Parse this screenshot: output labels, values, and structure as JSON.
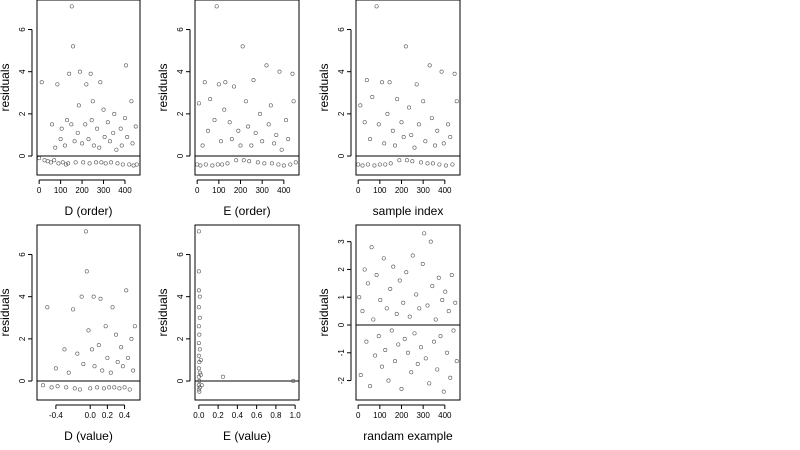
{
  "chart_data": [
    {
      "type": "scatter",
      "xlabel": "D (order)",
      "ylabel": "residuals",
      "xlim": [
        -10,
        470
      ],
      "ylim": [
        -0.9,
        7.4
      ],
      "xticks": [
        0,
        100,
        200,
        300,
        400
      ],
      "xtick_labels": [
        "0",
        "100",
        "200",
        "300",
        "400"
      ],
      "yticks": [
        0,
        2,
        4,
        6
      ],
      "ytick_labels": [
        "0",
        "2",
        "4",
        "6"
      ],
      "hline": 0,
      "points": [
        [
          0,
          -0.1
        ],
        [
          12,
          3.5
        ],
        [
          25,
          -0.2
        ],
        [
          40,
          -0.25
        ],
        [
          55,
          -0.3
        ],
        [
          60,
          1.5
        ],
        [
          70,
          -0.2
        ],
        [
          75,
          0.4
        ],
        [
          85,
          3.4
        ],
        [
          90,
          -0.35
        ],
        [
          100,
          0.8
        ],
        [
          105,
          1.3
        ],
        [
          110,
          -0.3
        ],
        [
          120,
          0.5
        ],
        [
          125,
          -0.4
        ],
        [
          130,
          1.7
        ],
        [
          135,
          -0.35
        ],
        [
          140,
          3.9
        ],
        [
          150,
          1.5
        ],
        [
          152,
          7.1
        ],
        [
          158,
          5.2
        ],
        [
          165,
          0.7
        ],
        [
          170,
          -0.3
        ],
        [
          180,
          1.1
        ],
        [
          185,
          2.4
        ],
        [
          190,
          4.0
        ],
        [
          200,
          0.6
        ],
        [
          205,
          -0.3
        ],
        [
          215,
          1.5
        ],
        [
          220,
          3.4
        ],
        [
          230,
          0.8
        ],
        [
          235,
          -0.35
        ],
        [
          240,
          3.9
        ],
        [
          245,
          1.7
        ],
        [
          250,
          2.6
        ],
        [
          255,
          0.5
        ],
        [
          265,
          -0.3
        ],
        [
          270,
          1.3
        ],
        [
          280,
          0.4
        ],
        [
          285,
          3.5
        ],
        [
          290,
          -0.3
        ],
        [
          300,
          2.2
        ],
        [
          305,
          0.9
        ],
        [
          310,
          -0.35
        ],
        [
          320,
          1.6
        ],
        [
          330,
          0.7
        ],
        [
          335,
          -0.3
        ],
        [
          345,
          1.1
        ],
        [
          350,
          2.0
        ],
        [
          360,
          0.3
        ],
        [
          365,
          -0.35
        ],
        [
          380,
          1.3
        ],
        [
          385,
          0.5
        ],
        [
          390,
          -0.4
        ],
        [
          400,
          1.8
        ],
        [
          405,
          4.3
        ],
        [
          410,
          0.9
        ],
        [
          420,
          -0.4
        ],
        [
          430,
          2.6
        ],
        [
          435,
          0.6
        ],
        [
          440,
          -0.45
        ],
        [
          450,
          1.4
        ],
        [
          455,
          -0.4
        ]
      ]
    },
    {
      "type": "scatter",
      "xlabel": "E (order)",
      "ylabel": "residuals",
      "xlim": [
        -10,
        470
      ],
      "ylim": [
        -0.9,
        7.4
      ],
      "xticks": [
        0,
        100,
        200,
        300,
        400
      ],
      "xtick_labels": [
        "0",
        "100",
        "200",
        "300",
        "400"
      ],
      "yticks": [
        0,
        2,
        4,
        6
      ],
      "ytick_labels": [
        "0",
        "2",
        "4",
        "6"
      ],
      "hline": 0,
      "points": [
        [
          0,
          -0.4
        ],
        [
          8,
          2.5
        ],
        [
          15,
          -0.45
        ],
        [
          25,
          0.5
        ],
        [
          35,
          3.5
        ],
        [
          40,
          -0.4
        ],
        [
          50,
          1.2
        ],
        [
          60,
          2.7
        ],
        [
          70,
          -0.45
        ],
        [
          80,
          1.7
        ],
        [
          90,
          7.1
        ],
        [
          95,
          -0.4
        ],
        [
          100,
          3.4
        ],
        [
          110,
          0.7
        ],
        [
          115,
          -0.4
        ],
        [
          125,
          2.2
        ],
        [
          130,
          3.5
        ],
        [
          140,
          -0.35
        ],
        [
          150,
          1.6
        ],
        [
          160,
          0.8
        ],
        [
          170,
          3.3
        ],
        [
          180,
          -0.2
        ],
        [
          190,
          1.2
        ],
        [
          200,
          0.5
        ],
        [
          210,
          5.2
        ],
        [
          215,
          -0.2
        ],
        [
          225,
          2.6
        ],
        [
          235,
          1.4
        ],
        [
          240,
          -0.25
        ],
        [
          250,
          0.5
        ],
        [
          260,
          3.6
        ],
        [
          270,
          1.1
        ],
        [
          280,
          -0.3
        ],
        [
          290,
          2.0
        ],
        [
          300,
          0.7
        ],
        [
          310,
          -0.35
        ],
        [
          320,
          4.3
        ],
        [
          330,
          1.5
        ],
        [
          340,
          2.4
        ],
        [
          345,
          -0.35
        ],
        [
          355,
          0.6
        ],
        [
          365,
          1.0
        ],
        [
          375,
          -0.4
        ],
        [
          380,
          4.0
        ],
        [
          390,
          0.3
        ],
        [
          400,
          -0.45
        ],
        [
          410,
          1.7
        ],
        [
          420,
          0.8
        ],
        [
          430,
          -0.4
        ],
        [
          440,
          3.9
        ],
        [
          445,
          2.6
        ],
        [
          455,
          -0.3
        ]
      ]
    },
    {
      "type": "scatter",
      "xlabel": "sample index",
      "ylabel": "residuals",
      "xlim": [
        -10,
        470
      ],
      "ylim": [
        -0.9,
        7.4
      ],
      "xticks": [
        0,
        100,
        200,
        300,
        400
      ],
      "xtick_labels": [
        "0",
        "100",
        "200",
        "300",
        "400"
      ],
      "yticks": [
        0,
        2,
        4,
        6
      ],
      "ytick_labels": [
        "0",
        "2",
        "4",
        "6"
      ],
      "hline": 0,
      "points": [
        [
          0,
          -0.4
        ],
        [
          10,
          2.4
        ],
        [
          20,
          -0.45
        ],
        [
          30,
          1.6
        ],
        [
          40,
          3.6
        ],
        [
          45,
          -0.4
        ],
        [
          55,
          0.8
        ],
        [
          65,
          2.8
        ],
        [
          75,
          -0.45
        ],
        [
          85,
          7.1
        ],
        [
          95,
          1.5
        ],
        [
          100,
          -0.4
        ],
        [
          110,
          3.5
        ],
        [
          120,
          0.6
        ],
        [
          125,
          -0.4
        ],
        [
          135,
          2.0
        ],
        [
          145,
          3.5
        ],
        [
          150,
          -0.35
        ],
        [
          160,
          1.2
        ],
        [
          170,
          0.5
        ],
        [
          180,
          2.7
        ],
        [
          190,
          -0.2
        ],
        [
          200,
          1.6
        ],
        [
          210,
          0.9
        ],
        [
          220,
          5.2
        ],
        [
          225,
          -0.2
        ],
        [
          235,
          2.3
        ],
        [
          245,
          1.0
        ],
        [
          250,
          -0.25
        ],
        [
          260,
          0.4
        ],
        [
          270,
          3.4
        ],
        [
          280,
          1.5
        ],
        [
          290,
          -0.3
        ],
        [
          300,
          2.6
        ],
        [
          310,
          0.7
        ],
        [
          320,
          -0.35
        ],
        [
          330,
          4.3
        ],
        [
          340,
          1.8
        ],
        [
          345,
          -0.35
        ],
        [
          355,
          0.5
        ],
        [
          365,
          1.2
        ],
        [
          375,
          -0.4
        ],
        [
          385,
          4.0
        ],
        [
          395,
          0.6
        ],
        [
          405,
          -0.45
        ],
        [
          415,
          1.5
        ],
        [
          425,
          0.9
        ],
        [
          435,
          -0.4
        ],
        [
          445,
          3.9
        ],
        [
          455,
          2.6
        ]
      ]
    },
    {
      "type": "scatter",
      "xlabel": "D (value)",
      "ylabel": "residuals",
      "xlim": [
        -0.62,
        0.58
      ],
      "ylim": [
        -0.9,
        7.4
      ],
      "xticks": [
        -0.4,
        0.0,
        0.2,
        0.4
      ],
      "xtick_labels": [
        "-0.4",
        "0.0",
        "0.2",
        "0.4"
      ],
      "yticks": [
        0,
        2,
        4,
        6
      ],
      "ytick_labels": [
        "0",
        "2",
        "4",
        "6"
      ],
      "hline": 0,
      "points": [
        [
          -0.55,
          -0.2
        ],
        [
          -0.5,
          3.5
        ],
        [
          -0.45,
          -0.3
        ],
        [
          -0.4,
          0.6
        ],
        [
          -0.38,
          -0.25
        ],
        [
          -0.3,
          1.5
        ],
        [
          -0.28,
          -0.3
        ],
        [
          -0.25,
          0.4
        ],
        [
          -0.2,
          3.4
        ],
        [
          -0.18,
          -0.35
        ],
        [
          -0.15,
          1.3
        ],
        [
          -0.12,
          -0.4
        ],
        [
          -0.1,
          4.0
        ],
        [
          -0.08,
          0.8
        ],
        [
          -0.05,
          7.1
        ],
        [
          -0.04,
          5.2
        ],
        [
          -0.02,
          2.4
        ],
        [
          0.0,
          -0.35
        ],
        [
          0.02,
          1.5
        ],
        [
          0.04,
          4.0
        ],
        [
          0.05,
          0.7
        ],
        [
          0.08,
          -0.3
        ],
        [
          0.1,
          1.7
        ],
        [
          0.12,
          3.9
        ],
        [
          0.14,
          0.5
        ],
        [
          0.16,
          -0.35
        ],
        [
          0.18,
          2.6
        ],
        [
          0.2,
          1.1
        ],
        [
          0.22,
          -0.3
        ],
        [
          0.24,
          0.4
        ],
        [
          0.26,
          3.5
        ],
        [
          0.28,
          -0.3
        ],
        [
          0.3,
          2.2
        ],
        [
          0.32,
          0.9
        ],
        [
          0.34,
          -0.35
        ],
        [
          0.36,
          1.6
        ],
        [
          0.38,
          0.7
        ],
        [
          0.4,
          -0.3
        ],
        [
          0.42,
          4.3
        ],
        [
          0.44,
          1.1
        ],
        [
          0.46,
          -0.4
        ],
        [
          0.48,
          2.0
        ],
        [
          0.5,
          0.5
        ],
        [
          0.52,
          2.6
        ]
      ]
    },
    {
      "type": "scatter",
      "xlabel": "E (value)",
      "ylabel": "residuals",
      "xlim": [
        -0.04,
        1.04
      ],
      "ylim": [
        -0.9,
        7.4
      ],
      "xticks": [
        0.0,
        0.2,
        0.4,
        0.6,
        0.8,
        1.0
      ],
      "xtick_labels": [
        "0.0",
        "0.2",
        "0.4",
        "0.6",
        "0.8",
        "1.0"
      ],
      "yticks": [
        0,
        2,
        4,
        6
      ],
      "ytick_labels": [
        "0",
        "2",
        "4",
        "6"
      ],
      "hline": 0,
      "points": [
        [
          0.0,
          7.1
        ],
        [
          0.0,
          5.2
        ],
        [
          0.0,
          4.3
        ],
        [
          0.01,
          4.0
        ],
        [
          0.0,
          3.5
        ],
        [
          0.01,
          3.0
        ],
        [
          0.0,
          2.6
        ],
        [
          0.005,
          2.2
        ],
        [
          0.0,
          1.8
        ],
        [
          0.01,
          1.5
        ],
        [
          0.0,
          1.2
        ],
        [
          0.005,
          0.9
        ],
        [
          0.0,
          0.6
        ],
        [
          0.01,
          0.4
        ],
        [
          0.0,
          0.2
        ],
        [
          0.005,
          0.0
        ],
        [
          0.0,
          -0.2
        ],
        [
          0.01,
          -0.3
        ],
        [
          0.0,
          -0.4
        ],
        [
          0.005,
          -0.5
        ],
        [
          0.02,
          1.0
        ],
        [
          0.02,
          0.3
        ],
        [
          0.03,
          -0.2
        ],
        [
          0.25,
          0.2
        ],
        [
          0.98,
          0.0
        ]
      ]
    },
    {
      "type": "scatter",
      "xlabel": "randam example",
      "ylabel": "residuals",
      "xlim": [
        -10,
        470
      ],
      "ylim": [
        -2.7,
        3.6
      ],
      "xticks": [
        0,
        100,
        200,
        300,
        400
      ],
      "xtick_labels": [
        "0",
        "100",
        "200",
        "300",
        "400"
      ],
      "yticks": [
        -2,
        -1,
        0,
        1,
        2,
        3
      ],
      "ytick_labels": [
        "-2",
        "-1",
        "0",
        "1",
        "2",
        "3"
      ],
      "hline": 0,
      "points": [
        [
          5,
          1.0
        ],
        [
          12,
          -1.8
        ],
        [
          20,
          0.5
        ],
        [
          30,
          2.0
        ],
        [
          38,
          -0.6
        ],
        [
          45,
          1.5
        ],
        [
          55,
          -2.2
        ],
        [
          62,
          2.8
        ],
        [
          70,
          0.2
        ],
        [
          78,
          -1.1
        ],
        [
          85,
          1.8
        ],
        [
          95,
          -0.4
        ],
        [
          102,
          0.9
        ],
        [
          110,
          -1.5
        ],
        [
          118,
          2.4
        ],
        [
          125,
          -0.9
        ],
        [
          132,
          0.6
        ],
        [
          140,
          -2.0
        ],
        [
          148,
          1.3
        ],
        [
          155,
          -0.2
        ],
        [
          162,
          2.1
        ],
        [
          170,
          -1.3
        ],
        [
          178,
          0.4
        ],
        [
          185,
          -0.7
        ],
        [
          192,
          1.6
        ],
        [
          200,
          -2.3
        ],
        [
          208,
          0.8
        ],
        [
          215,
          -0.5
        ],
        [
          222,
          1.9
        ],
        [
          230,
          -1.0
        ],
        [
          238,
          0.3
        ],
        [
          245,
          -1.7
        ],
        [
          252,
          2.5
        ],
        [
          260,
          -0.3
        ],
        [
          268,
          1.1
        ],
        [
          275,
          -1.4
        ],
        [
          282,
          0.6
        ],
        [
          290,
          -0.8
        ],
        [
          298,
          2.2
        ],
        [
          305,
          3.3
        ],
        [
          312,
          -1.2
        ],
        [
          320,
          0.7
        ],
        [
          328,
          -2.1
        ],
        [
          335,
          3.0
        ],
        [
          342,
          1.4
        ],
        [
          350,
          -0.6
        ],
        [
          358,
          0.2
        ],
        [
          365,
          -1.6
        ],
        [
          372,
          1.7
        ],
        [
          380,
          -0.4
        ],
        [
          388,
          0.9
        ],
        [
          395,
          -2.4
        ],
        [
          402,
          1.2
        ],
        [
          410,
          -1.0
        ],
        [
          418,
          0.5
        ],
        [
          425,
          -1.9
        ],
        [
          432,
          1.8
        ],
        [
          440,
          -0.2
        ],
        [
          448,
          0.8
        ],
        [
          455,
          -1.3
        ]
      ]
    }
  ]
}
